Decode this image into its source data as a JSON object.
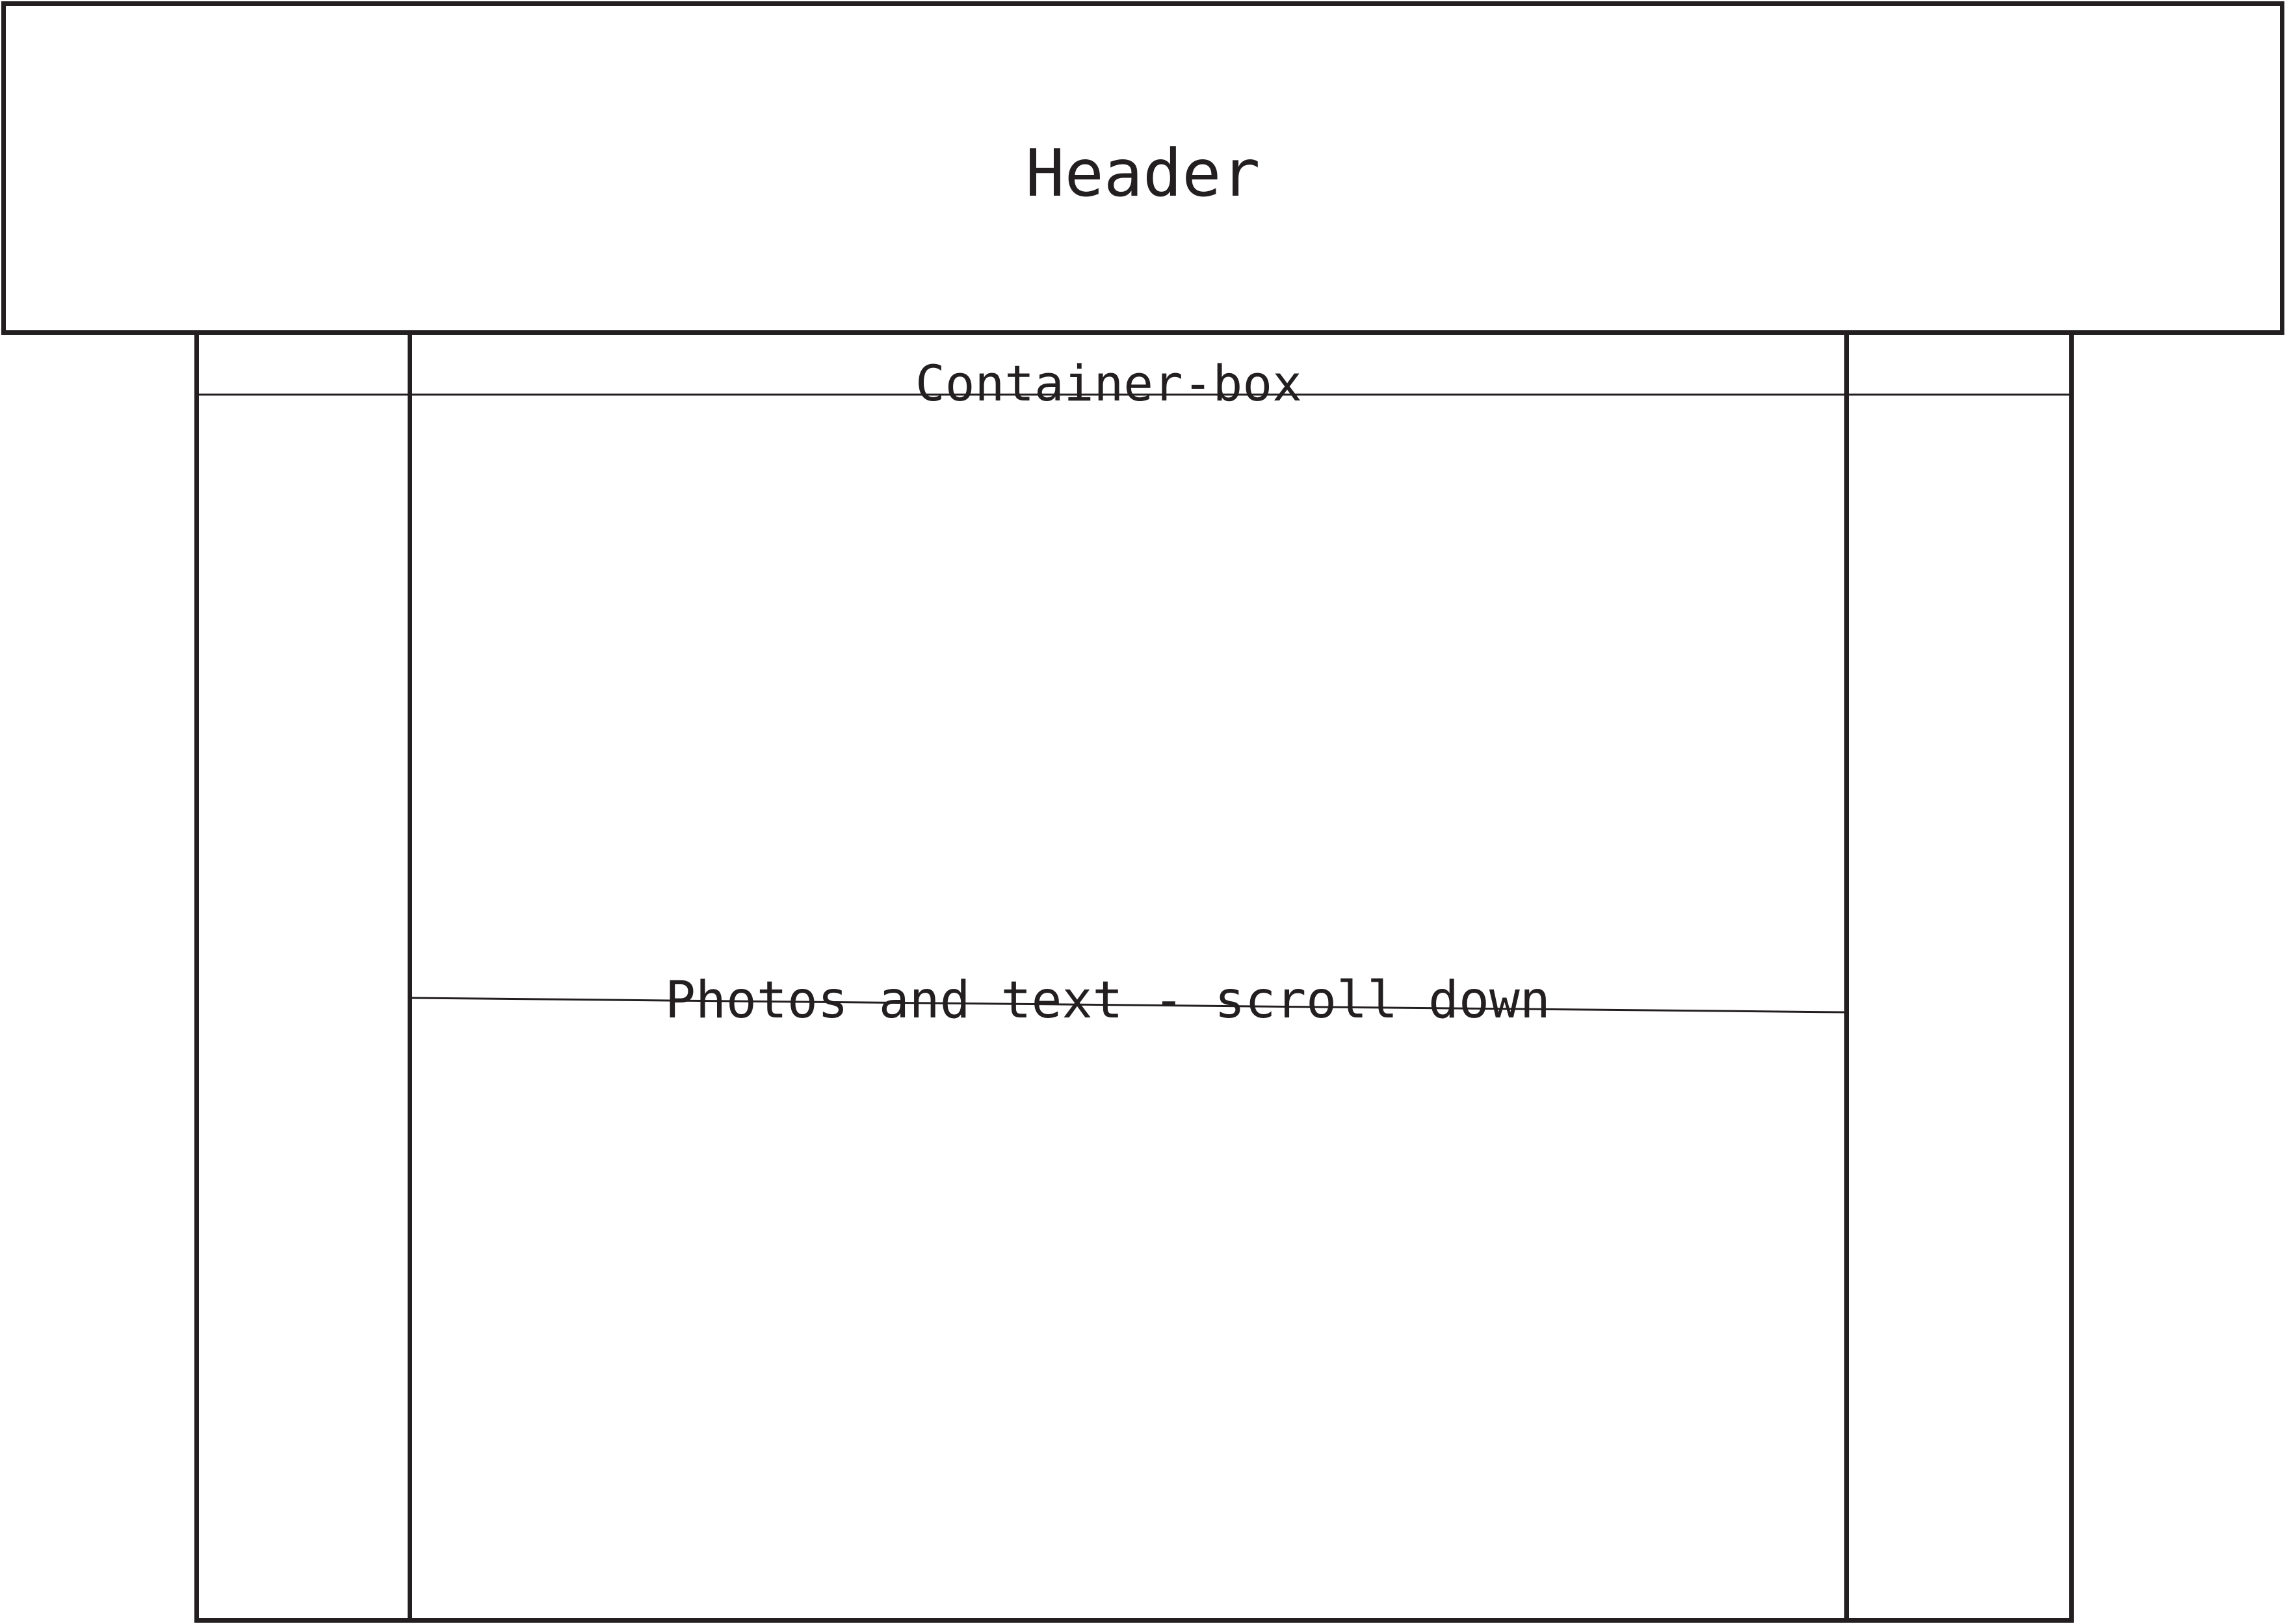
{
  "header": {
    "label": "Header"
  },
  "container": {
    "label": "Container-box"
  },
  "content": {
    "label": "Photos and text - scroll down"
  },
  "colors": {
    "stroke": "#231f20",
    "background": "#ffffff"
  }
}
